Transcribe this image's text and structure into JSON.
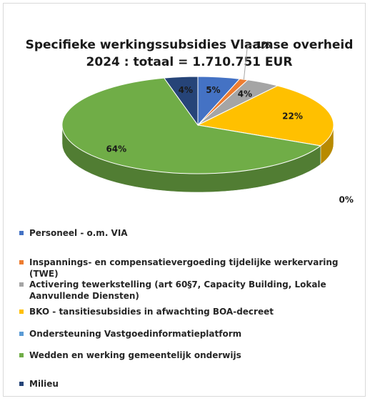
{
  "chart_data": {
    "type": "pie3d",
    "title": [
      "Specifieke werkingssubsidies Vlaamse overheid",
      "2024 : totaal = 1.710.751 EUR"
    ],
    "categories": [
      "Personeel - o.m. VIA",
      "Inspannings- en compensatievergoeding tijdelijke werkervaring (TWE)",
      "Activering tewerkstelling (art 60§7, Capacity Building, Lokale Aanvullende Diensten)",
      "BKO - tansitiesubsidies in afwachting BOA-decreet",
      "Ondersteuning Vastgoedinformatieplatform",
      "Wedden en werking gemeentelijk onderwijs",
      "Milieu"
    ],
    "values": [
      5,
      1,
      4,
      22,
      0,
      64,
      4
    ],
    "value_labels": [
      "5%",
      "1%",
      "4%",
      "22%",
      "0%",
      "64%",
      "4%"
    ],
    "colors": [
      "#4472c4",
      "#ed7d31",
      "#a5a5a5",
      "#ffc000",
      "#5b9bd5",
      "#70ad47",
      "#264478"
    ],
    "legend": "bottom"
  }
}
